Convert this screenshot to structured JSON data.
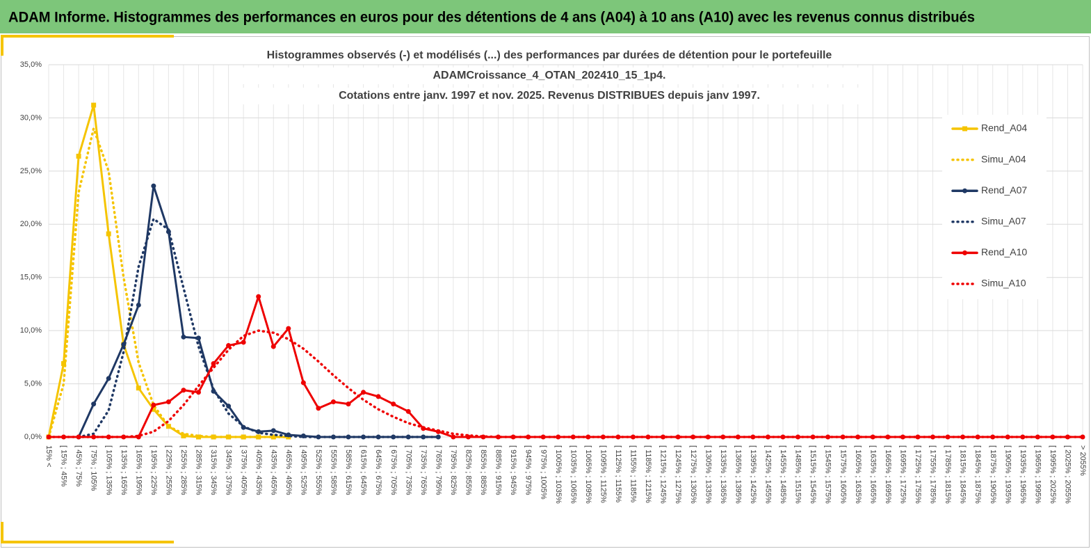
{
  "header": {
    "title": "ADAM Informe. Histogrammes des performances en euros pour des détentions de 4 ans (A04) à 10 ans (A10) avec les revenus connus distribués"
  },
  "chart_data": {
    "type": "line",
    "title_lines": [
      "Histogrammes observés (-) et modélisés (...) des performances par durées de détention pour le portefeuille",
      "ADAMCroissance_4_OTAN_202410_15_1p4.",
      "Cotations entre janv. 1997 et nov. 2025. Revenus DISTRIBUES depuis janv 1997."
    ],
    "categories": [
      "15% <",
      "[ 15% ; 45%",
      "[ 45% ; 75%",
      "[ 75% ; 105%",
      "[ 105% ; 135%",
      "[ 135% ; 165%",
      "[ 165% ; 195%",
      "[ 195% ; 225%",
      "[ 225% ; 255%",
      "[ 255% ; 285%",
      "[ 285% ; 315%",
      "[ 315% ; 345%",
      "[ 345% ; 375%",
      "[ 375% ; 405%",
      "[ 405% ; 435%",
      "[ 435% ; 465%",
      "[ 465% ; 495%",
      "[ 495% ; 525%",
      "[ 525% ; 555%",
      "[ 555% ; 585%",
      "[ 585% ; 615%",
      "[ 615% ; 645%",
      "[ 645% ; 675%",
      "[ 675% ; 705%",
      "[ 705% ; 735%",
      "[ 735% ; 765%",
      "[ 765% ; 795%",
      "[ 795% ; 825%",
      "[ 825% ; 855%",
      "[ 855% ; 885%",
      "[ 885% ; 915%",
      "[ 915% ; 945%",
      "[ 945% ; 975%",
      "[ 975% ; 1005%",
      "[ 1005% ; 1035%",
      "[ 1035% ; 1065%",
      "[ 1065% ; 1095%",
      "[ 1095% ; 1125%",
      "[ 1125% ; 1155%",
      "[ 1155% ; 1185%",
      "[ 1185% ; 1215%",
      "[ 1215% ; 1245%",
      "[ 1245% ; 1275%",
      "[ 1275% ; 1305%",
      "[ 1305% ; 1335%",
      "[ 1335% ; 1365%",
      "[ 1365% ; 1395%",
      "[ 1395% ; 1425%",
      "[ 1425% ; 1455%",
      "[ 1455% ; 1485%",
      "[ 1485% ; 1515%",
      "[ 1515% ; 1545%",
      "[ 1545% ; 1575%",
      "[ 1575% ; 1605%",
      "[ 1605% ; 1635%",
      "[ 1635% ; 1665%",
      "[ 1665% ; 1695%",
      "[ 1695% ; 1725%",
      "[ 1725% ; 1755%",
      "[ 1755% ; 1785%",
      "[ 1785% ; 1815%",
      "[ 1815% ; 1845%",
      "[ 1845% ; 1875%",
      "[ 1875% ; 1905%",
      "[ 1905% ; 1935%",
      "[ 1935% ; 1965%",
      "[ 1965% ; 1995%",
      "[ 1995% ; 2025%",
      "[ 2025% ; 2055%",
      "> 2055%"
    ],
    "series": [
      {
        "name": "Rend_A04",
        "color": "#f5c400",
        "marker": "square",
        "dash": false,
        "values": [
          0,
          6.9,
          26.4,
          31.2,
          19.1,
          8.7,
          4.6,
          2.6,
          1.0,
          0.1,
          0,
          0,
          0,
          0,
          0,
          0,
          0,
          null,
          null,
          null,
          null,
          null,
          null,
          null,
          null,
          null,
          null,
          null,
          null,
          null,
          null,
          null,
          null,
          null,
          null,
          null,
          null,
          null,
          null,
          null,
          null,
          null,
          null,
          null,
          null,
          null,
          null,
          null,
          null,
          null,
          null,
          null,
          null,
          null,
          null,
          null,
          null,
          null,
          null,
          null,
          null,
          null,
          null,
          null,
          null,
          null,
          null,
          null,
          null,
          null
        ]
      },
      {
        "name": "Simu_A04",
        "color": "#f5c400",
        "marker": "none",
        "dash": true,
        "values": [
          0,
          5,
          23,
          29,
          25,
          15,
          7,
          3,
          1,
          0.3,
          0.1,
          0,
          0,
          0,
          0,
          0,
          0,
          null,
          null,
          null,
          null,
          null,
          null,
          null,
          null,
          null,
          null,
          null,
          null,
          null,
          null,
          null,
          null,
          null,
          null,
          null,
          null,
          null,
          null,
          null,
          null,
          null,
          null,
          null,
          null,
          null,
          null,
          null,
          null,
          null,
          null,
          null,
          null,
          null,
          null,
          null,
          null,
          null,
          null,
          null,
          null,
          null,
          null,
          null,
          null,
          null,
          null,
          null,
          null,
          null
        ]
      },
      {
        "name": "Rend_A07",
        "color": "#1f3864",
        "marker": "circle",
        "dash": false,
        "values": [
          null,
          null,
          0,
          3.1,
          5.5,
          8.7,
          12.4,
          23.6,
          19.3,
          9.4,
          9.3,
          4.3,
          2.9,
          0.9,
          0.5,
          0.6,
          0.2,
          0.1,
          0,
          0,
          0,
          0,
          0,
          0,
          0,
          0,
          0,
          null,
          null,
          null,
          null,
          null,
          null,
          null,
          null,
          null,
          null,
          null,
          null,
          null,
          null,
          null,
          null,
          null,
          null,
          null,
          null,
          null,
          null,
          null,
          null,
          null,
          null,
          null,
          null,
          null,
          null,
          null,
          null,
          null,
          null,
          null,
          null,
          null,
          null,
          null,
          null,
          null,
          null,
          null
        ]
      },
      {
        "name": "Simu_A07",
        "color": "#1f3864",
        "marker": "none",
        "dash": true,
        "values": [
          null,
          null,
          0,
          0.3,
          2.5,
          8,
          16,
          20.5,
          19.5,
          14,
          8.5,
          4.5,
          2.2,
          1,
          0.4,
          0.2,
          0.1,
          0,
          0,
          0,
          0,
          0,
          0,
          0,
          0,
          0,
          0,
          null,
          null,
          null,
          null,
          null,
          null,
          null,
          null,
          null,
          null,
          null,
          null,
          null,
          null,
          null,
          null,
          null,
          null,
          null,
          null,
          null,
          null,
          null,
          null,
          null,
          null,
          null,
          null,
          null,
          null,
          null,
          null,
          null,
          null,
          null,
          null,
          null,
          null,
          null,
          null,
          null,
          null,
          null
        ]
      },
      {
        "name": "Rend_A10",
        "color": "#ee0000",
        "marker": "circle",
        "dash": false,
        "values": [
          0,
          0,
          0,
          0,
          0,
          0,
          0,
          3.0,
          3.3,
          4.4,
          4.2,
          6.9,
          8.6,
          8.9,
          13.2,
          8.5,
          10.2,
          5.1,
          2.7,
          3.3,
          3.1,
          4.2,
          3.8,
          3.1,
          2.4,
          0.8,
          0.5,
          0,
          0,
          0,
          0,
          0,
          0,
          0,
          0,
          0,
          0,
          0,
          0,
          0,
          0,
          0,
          0,
          0,
          0,
          0,
          0,
          0,
          0,
          0,
          0,
          0,
          0,
          0,
          0,
          0,
          0,
          0,
          0,
          0,
          0,
          0,
          0,
          0,
          0,
          0,
          0,
          0,
          0,
          0
        ]
      },
      {
        "name": "Simu_A10",
        "color": "#ee0000",
        "marker": "none",
        "dash": true,
        "values": [
          0,
          0,
          0,
          0,
          0,
          0,
          0.1,
          0.5,
          1.5,
          3,
          4.8,
          6.5,
          8.2,
          9.5,
          10,
          9.8,
          9.2,
          8.3,
          7.1,
          5.8,
          4.6,
          3.5,
          2.6,
          1.9,
          1.3,
          0.9,
          0.6,
          0.3,
          0.15,
          0.05,
          0,
          0,
          0,
          0,
          0,
          0,
          0,
          0,
          0,
          0,
          0,
          0,
          0,
          0,
          0,
          0,
          0,
          0,
          0,
          0,
          0,
          0,
          0,
          0,
          0,
          0,
          0,
          0,
          0,
          0,
          0,
          0,
          0,
          0,
          0,
          0,
          0,
          0,
          0,
          0
        ]
      }
    ],
    "ylim": [
      0,
      35
    ],
    "yticks": [
      {
        "value": 0,
        "label": "0,0%"
      },
      {
        "value": 5,
        "label": "5,0%"
      },
      {
        "value": 10,
        "label": "10,0%"
      },
      {
        "value": 15,
        "label": "15,0%"
      },
      {
        "value": 20,
        "label": "20,0%"
      },
      {
        "value": 25,
        "label": "25,0%"
      },
      {
        "value": 30,
        "label": "30,0%"
      },
      {
        "value": 35,
        "label": "35,0%"
      }
    ],
    "grid": true,
    "legend": "right"
  }
}
